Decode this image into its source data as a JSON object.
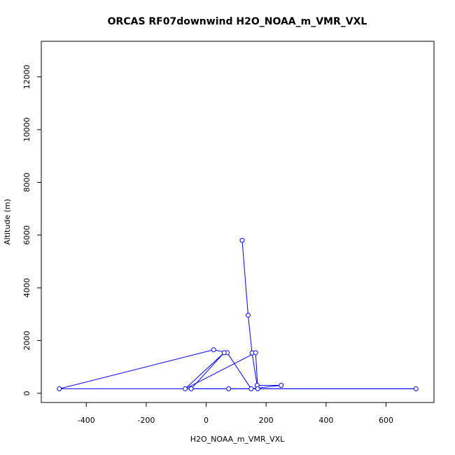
{
  "chart_data": {
    "type": "line",
    "title": "ORCAS RF07downwind H2O_NOAA_m_VMR_VXL",
    "xlabel": "H2O_NOAA_m_VMR_VXL",
    "ylabel": "Altitude (m)",
    "xlim": [
      -550,
      760
    ],
    "ylim": [
      -350,
      13350
    ],
    "xticks": [
      -400,
      -200,
      0,
      200,
      400,
      600
    ],
    "yticks": [
      0,
      2000,
      4000,
      6000,
      8000,
      10000,
      12000
    ],
    "xtick_labels": [
      "-400",
      "-200",
      "0",
      "200",
      "400",
      "600"
    ],
    "ytick_labels": [
      "0",
      "2000",
      "4000",
      "6000",
      "8000",
      "10000",
      "12000"
    ],
    "grid": false,
    "series": [
      {
        "color": "#0000ff",
        "marker": "open-circle",
        "points": [
          {
            "x": 120,
            "y": 5800
          },
          {
            "x": 140,
            "y": 2960
          },
          {
            "x": 153,
            "y": 1530
          },
          {
            "x": 170,
            "y": 300
          },
          {
            "x": 250,
            "y": 300
          },
          {
            "x": 150,
            "y": 170
          },
          {
            "x": 70,
            "y": 1540
          },
          {
            "x": 25,
            "y": 1650
          },
          {
            "x": -490,
            "y": 170
          },
          {
            "x": 700,
            "y": 170
          },
          {
            "x": 75,
            "y": 170
          },
          {
            "x": -50,
            "y": 170
          },
          {
            "x": 60,
            "y": 1540
          },
          {
            "x": -70,
            "y": 170
          },
          {
            "x": 165,
            "y": 1540
          },
          {
            "x": 172,
            "y": 170
          }
        ]
      }
    ]
  }
}
